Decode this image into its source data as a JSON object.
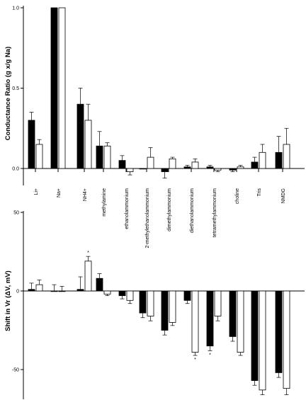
{
  "chart_data": [
    {
      "type": "bar",
      "ylabel": "Conductance Ratio (g x/g Na)",
      "ylim": [
        0,
        1.0
      ],
      "yticks": [
        "0.0",
        "0.5",
        "1.0"
      ],
      "categories": [
        "Li+",
        "Na+",
        "NH4+",
        "methylamine",
        "ethanolammonium",
        "2-methylethanolammonium",
        "dimethylammonium",
        "diethanolammonium",
        "tetramethylammonium",
        "choline",
        "Tris",
        "NMDG"
      ],
      "series": [
        {
          "fill": "#000000",
          "values": [
            0.3,
            1.0,
            0.4,
            0.14,
            0.05,
            0.0,
            -0.02,
            0.01,
            0.01,
            -0.01,
            0.04,
            0.1
          ],
          "errors": [
            0.05,
            0,
            0.1,
            0.09,
            0.03,
            0,
            0.04,
            0.01,
            0.01,
            0.01,
            0.03,
            0.1
          ]
        },
        {
          "fill": "#ffffff",
          "values": [
            0.15,
            1.0,
            0.3,
            0.14,
            -0.02,
            0.07,
            0.06,
            0.04,
            -0.01,
            0.01,
            0.1,
            0.15
          ],
          "errors": [
            0.03,
            0,
            0.1,
            0.02,
            0.02,
            0.06,
            0.01,
            0.02,
            0.01,
            0.01,
            0.05,
            0.1
          ]
        }
      ]
    },
    {
      "type": "bar",
      "ylabel": "Shift in Vr (ΔV, mV)",
      "ylim": [
        -65,
        50
      ],
      "yticks": [
        "50",
        "0",
        "-50"
      ],
      "categories": [
        "Li+",
        "Na+",
        "NH4+",
        "methylamine",
        "ethanolammonium",
        "2-methylethanolammonium",
        "dimethylammonium",
        "diethanolammonium",
        "tetramethylammonium",
        "choline",
        "Tris",
        "NMDG"
      ],
      "series": [
        {
          "fill": "#000000",
          "values": [
            1,
            0,
            1,
            8,
            -3,
            -14,
            -25,
            -6,
            -35,
            -29,
            -57,
            -52
          ],
          "errors": [
            4,
            4,
            8,
            3,
            2,
            3,
            3,
            2,
            3,
            3,
            3,
            3
          ]
        },
        {
          "fill": "#ffffff",
          "values": [
            4,
            0,
            19,
            -2,
            -6,
            -16,
            -20,
            -39,
            -16,
            -39,
            -63,
            -62
          ],
          "errors": [
            3,
            3,
            3,
            1,
            2,
            3,
            2,
            2,
            3,
            2,
            3,
            4
          ]
        }
      ],
      "annotations": [
        {
          "category": 2,
          "series": 1,
          "text": "*"
        },
        {
          "category": 7,
          "series": 1,
          "text": "*"
        },
        {
          "category": 8,
          "series": 0,
          "text": "*"
        }
      ]
    }
  ]
}
